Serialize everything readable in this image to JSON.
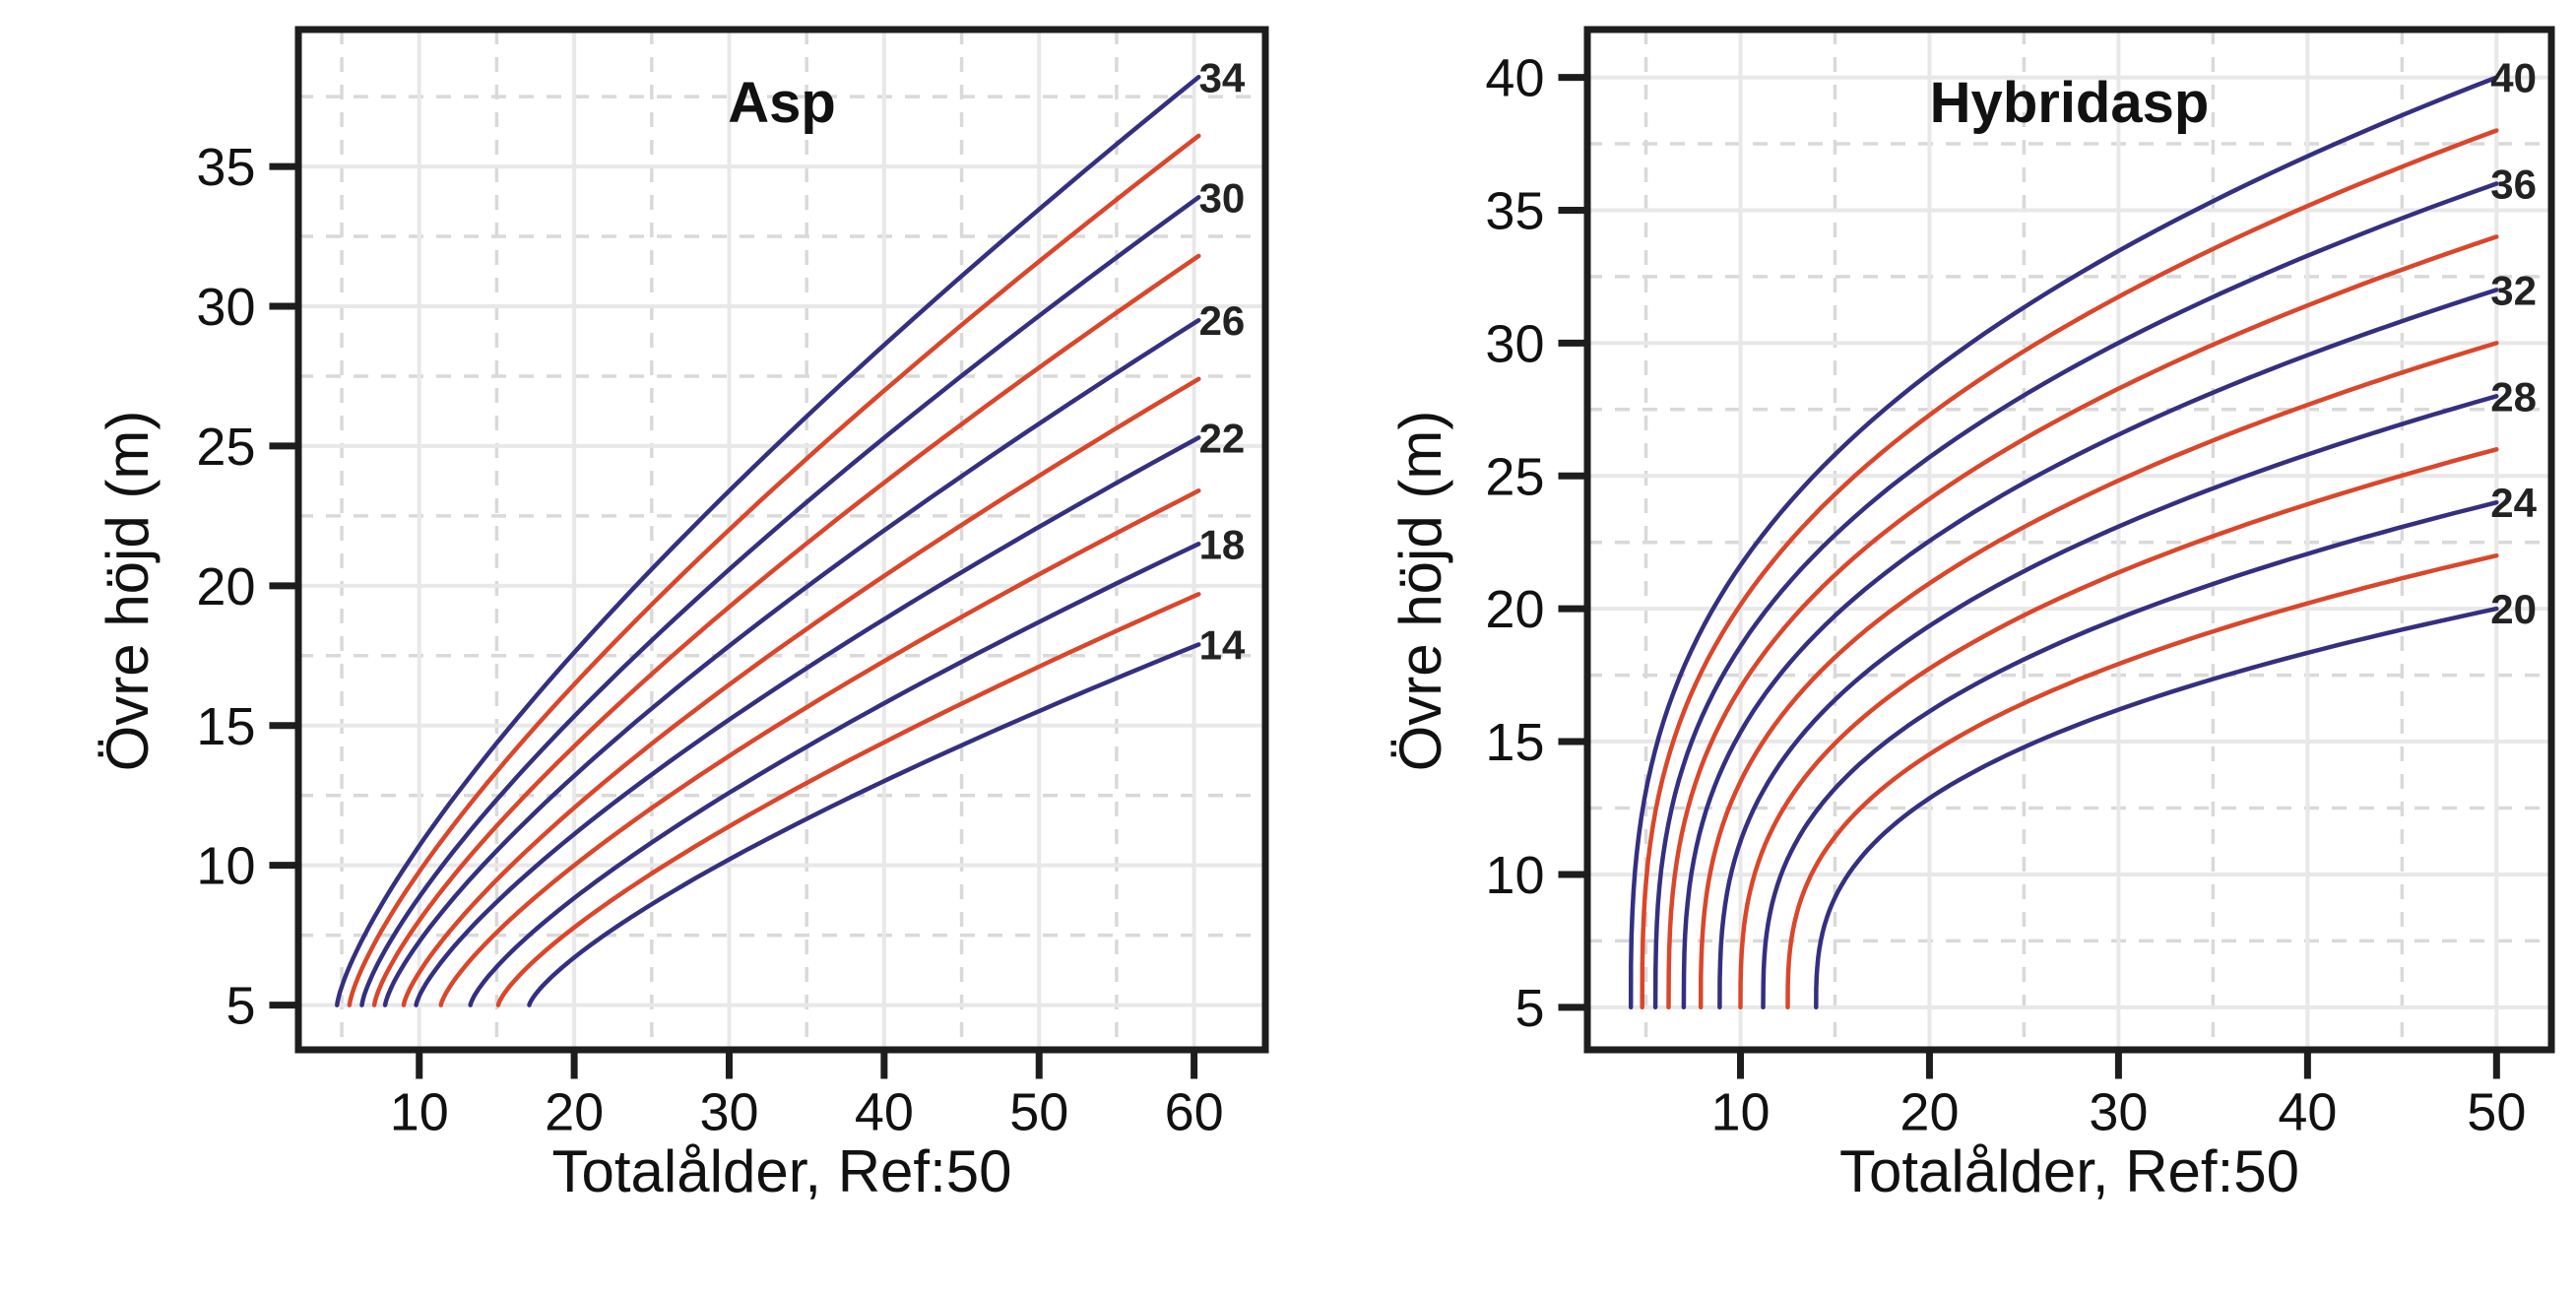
{
  "figure": {
    "background": "#ffffff",
    "description_texts": {
      "left_panel_title": "Asp",
      "right_panel_title": "Hybridasp"
    }
  },
  "style": {
    "curve_blue": "#34307f",
    "curve_red": "#d9472b",
    "frame_color": "#1d1d1d",
    "major_grid_color": "#e8e8e8",
    "minor_grid_color": "#d9d9d9",
    "text_color": "#111111",
    "curve_label_color": "#222222"
  },
  "chart_data": [
    {
      "type": "line",
      "species_title": "Asp",
      "xlabel": "Totalålder, Ref:50",
      "ylabel": "Övre höjd (m)",
      "reference_age": 50,
      "legend": "none",
      "grid": true,
      "xlim": [
        2.2,
        64.6
      ],
      "ylim": [
        3.4,
        39.9
      ],
      "x_major_ticks": [
        10,
        20,
        30,
        40,
        50,
        60
      ],
      "x_minor_gridlines": [
        5,
        15,
        25,
        35,
        45,
        55
      ],
      "y_major_ticks": [
        5,
        10,
        15,
        20,
        25,
        30,
        35
      ],
      "y_minor_gridlines": [
        7.5,
        12.5,
        17.5,
        22.5,
        27.5,
        32.5,
        37.5
      ],
      "curve_start_height_m": 5,
      "curve_end_age": 60.3,
      "curve_label_age": 61.8,
      "shape_exponent": 0.75,
      "series": [
        {
          "site_index": 34,
          "color_key": "blue",
          "start_age": 4.7,
          "end_height": 38.2,
          "label": "34"
        },
        {
          "site_index": 32,
          "color_key": "red",
          "start_age": 5.5,
          "end_height": 36.1,
          "label": ""
        },
        {
          "site_index": 30,
          "color_key": "blue",
          "start_age": 6.3,
          "end_height": 33.9,
          "label": "30"
        },
        {
          "site_index": 28,
          "color_key": "red",
          "start_age": 7.1,
          "end_height": 31.8,
          "label": ""
        },
        {
          "site_index": 26,
          "color_key": "blue",
          "start_age": 7.8,
          "end_height": 29.5,
          "label": "26"
        },
        {
          "site_index": 24,
          "color_key": "red",
          "start_age": 9.0,
          "end_height": 27.4,
          "label": ""
        },
        {
          "site_index": 22,
          "color_key": "blue",
          "start_age": 9.8,
          "end_height": 25.3,
          "label": "22"
        },
        {
          "site_index": 20,
          "color_key": "red",
          "start_age": 11.4,
          "end_height": 23.4,
          "label": ""
        },
        {
          "site_index": 18,
          "color_key": "blue",
          "start_age": 13.3,
          "end_height": 21.5,
          "label": "18"
        },
        {
          "site_index": 16,
          "color_key": "red",
          "start_age": 15.1,
          "end_height": 19.7,
          "label": ""
        },
        {
          "site_index": 14,
          "color_key": "blue",
          "start_age": 17.1,
          "end_height": 17.9,
          "label": "14"
        }
      ]
    },
    {
      "type": "line",
      "species_title": "Hybridasp",
      "xlabel": "Totalålder, Ref:50",
      "ylabel": "Övre höjd (m)",
      "reference_age": 50,
      "legend": "none",
      "grid": true,
      "xlim": [
        1.9,
        52.9
      ],
      "ylim": [
        3.4,
        41.8
      ],
      "x_major_ticks": [
        10,
        20,
        30,
        40,
        50
      ],
      "x_minor_gridlines": [
        5,
        15,
        25,
        35,
        45
      ],
      "y_major_ticks": [
        5,
        10,
        15,
        20,
        25,
        30,
        35,
        40
      ],
      "y_minor_gridlines": [
        7.5,
        12.5,
        17.5,
        22.5,
        27.5,
        32.5,
        37.5
      ],
      "curve_start_height_m": 5,
      "curve_end_age": 50,
      "curve_label_age": 50.9,
      "shape_exponent": 0.36,
      "series": [
        {
          "site_index": 40,
          "color_key": "blue",
          "start_age": 4.2,
          "end_height": 40,
          "label": "40"
        },
        {
          "site_index": 38,
          "color_key": "red",
          "start_age": 4.8,
          "end_height": 38,
          "label": ""
        },
        {
          "site_index": 36,
          "color_key": "blue",
          "start_age": 5.5,
          "end_height": 36,
          "label": "36"
        },
        {
          "site_index": 34,
          "color_key": "red",
          "start_age": 6.2,
          "end_height": 34,
          "label": ""
        },
        {
          "site_index": 32,
          "color_key": "blue",
          "start_age": 7.0,
          "end_height": 32,
          "label": "32"
        },
        {
          "site_index": 30,
          "color_key": "red",
          "start_age": 7.9,
          "end_height": 30,
          "label": ""
        },
        {
          "site_index": 28,
          "color_key": "blue",
          "start_age": 8.9,
          "end_height": 28,
          "label": "28"
        },
        {
          "site_index": 26,
          "color_key": "red",
          "start_age": 10.0,
          "end_height": 26,
          "label": ""
        },
        {
          "site_index": 24,
          "color_key": "blue",
          "start_age": 11.2,
          "end_height": 24,
          "label": "24"
        },
        {
          "site_index": 22,
          "color_key": "red",
          "start_age": 12.5,
          "end_height": 22,
          "label": ""
        },
        {
          "site_index": 20,
          "color_key": "blue",
          "start_age": 14.0,
          "end_height": 20,
          "label": "20"
        }
      ]
    }
  ]
}
